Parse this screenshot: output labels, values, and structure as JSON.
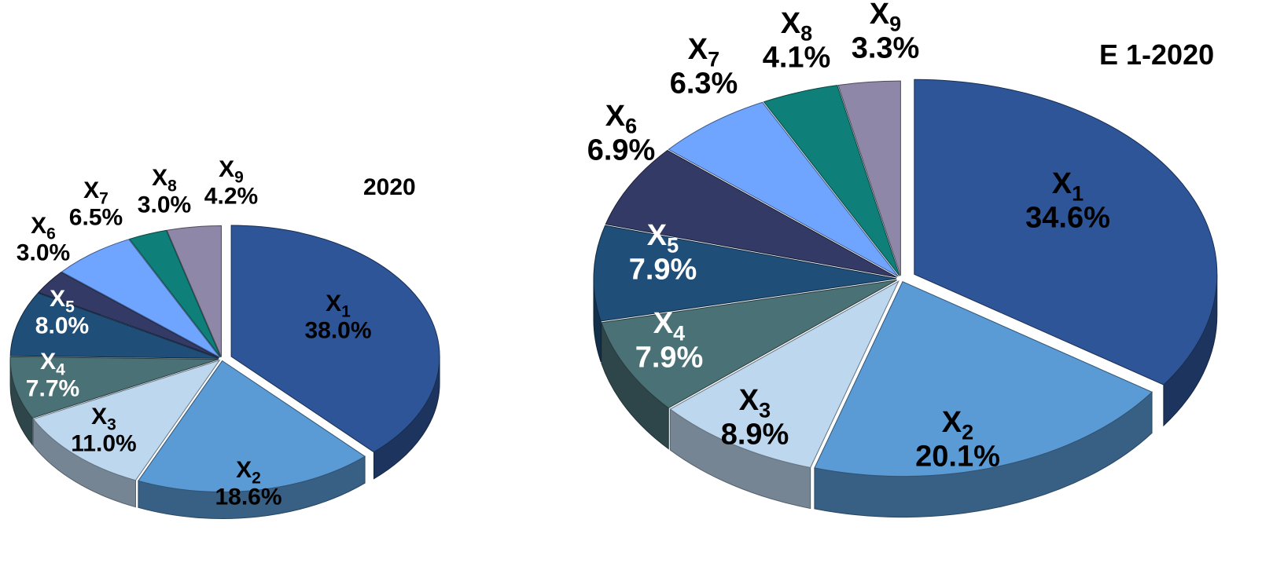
{
  "chart_data": [
    {
      "type": "pie",
      "title": "2020",
      "slices": [
        {
          "name": "X",
          "sub": "1",
          "value": 38.0,
          "label": "38.0%",
          "color": "#2e5597"
        },
        {
          "name": "X",
          "sub": "2",
          "value": 18.6,
          "label": "18.6%",
          "color": "#5b9bd5"
        },
        {
          "name": "X",
          "sub": "3",
          "value": 11.0,
          "label": "11.0%",
          "color": "#bdd7ee"
        },
        {
          "name": "X",
          "sub": "4",
          "value": 7.7,
          "label": "7.7%",
          "color": "#4a7176"
        },
        {
          "name": "X",
          "sub": "5",
          "value": 8.0,
          "label": "8.0%",
          "color": "#1f4e79"
        },
        {
          "name": "X",
          "sub": "6",
          "value": 3.0,
          "label": "3.0%",
          "color": "#333a66"
        },
        {
          "name": "X",
          "sub": "7",
          "value": 6.5,
          "label": "6.5%",
          "color": "#6fa4ff"
        },
        {
          "name": "X",
          "sub": "8",
          "value": 3.0,
          "label": "3.0%",
          "color": "#0f7f7a"
        },
        {
          "name": "X",
          "sub": "9",
          "value": 4.2,
          "label": "4.2%",
          "color": "#8e87a8"
        }
      ]
    },
    {
      "type": "pie",
      "title": "E 1-2020",
      "slices": [
        {
          "name": "X",
          "sub": "1",
          "value": 34.6,
          "label": "34.6%",
          "color": "#2e5597"
        },
        {
          "name": "X",
          "sub": "2",
          "value": 20.1,
          "label": "20.1%",
          "color": "#5b9bd5"
        },
        {
          "name": "X",
          "sub": "3",
          "value": 8.9,
          "label": "8.9%",
          "color": "#bdd7ee"
        },
        {
          "name": "X",
          "sub": "4",
          "value": 7.9,
          "label": "7.9%",
          "color": "#4a7176"
        },
        {
          "name": "X",
          "sub": "5",
          "value": 7.9,
          "label": "7.9%",
          "color": "#1f4e79"
        },
        {
          "name": "X",
          "sub": "6",
          "value": 6.9,
          "label": "6.9%",
          "color": "#333a66"
        },
        {
          "name": "X",
          "sub": "7",
          "value": 6.3,
          "label": "6.3%",
          "color": "#6fa4ff"
        },
        {
          "name": "X",
          "sub": "8",
          "value": 4.1,
          "label": "4.1%",
          "color": "#0f7f7a"
        },
        {
          "name": "X",
          "sub": "9",
          "value": 3.3,
          "label": "3.3%",
          "color": "#8e87a8"
        }
      ]
    }
  ]
}
